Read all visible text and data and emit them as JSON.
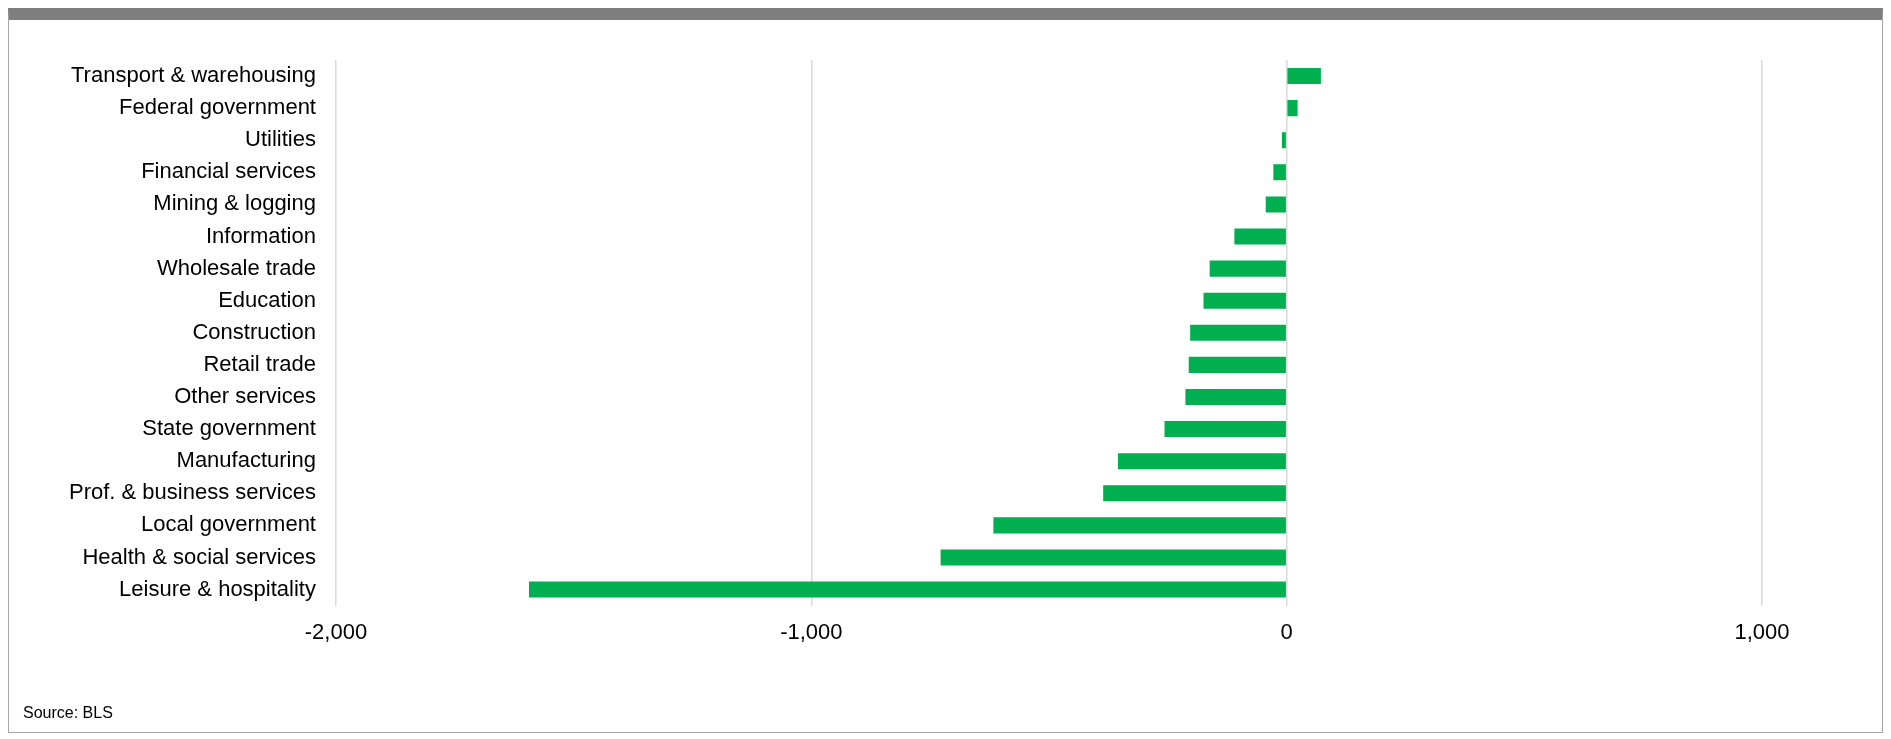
{
  "chart_data": {
    "type": "bar",
    "orientation": "horizontal",
    "categories": [
      "Transport & warehousing",
      "Federal government",
      "Utilities",
      "Financial services",
      "Mining & logging",
      "Information",
      "Wholesale trade",
      "Education",
      "Construction",
      "Retail trade",
      "Other services",
      "State government",
      "Manufacturing",
      "Prof. & business services",
      "Local government",
      "Health & social services",
      "Leisure & hospitality"
    ],
    "values": [
      72,
      23,
      -10,
      -28,
      -44,
      -110,
      -162,
      -175,
      -203,
      -206,
      -213,
      -257,
      -355,
      -386,
      -617,
      -728,
      -1594
    ],
    "color": "#00b050",
    "xlim": [
      -2000,
      1000
    ],
    "xticks": [
      {
        "value": -2000,
        "label": "-2,000"
      },
      {
        "value": -1000,
        "label": "-1,000"
      },
      0,
      {
        "value": 1000,
        "label": "1,000"
      }
    ],
    "grid": "x",
    "annotations": [
      "Source: BLS"
    ]
  }
}
